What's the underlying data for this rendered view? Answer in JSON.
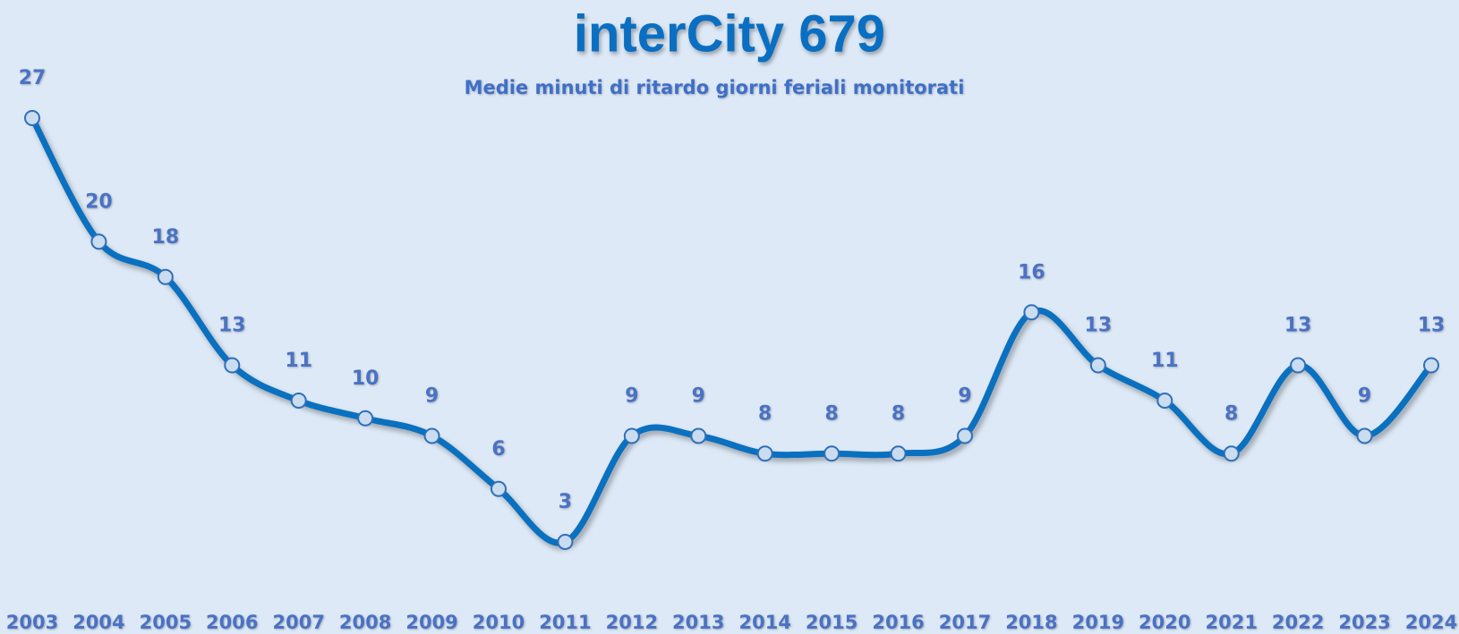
{
  "chart_data": {
    "type": "line",
    "title": "interCity 679",
    "subtitle": "Medie minuti di ritardo giorni feriali monitorati",
    "categories": [
      "2003",
      "2004",
      "2005",
      "2006",
      "2007",
      "2008",
      "2009",
      "2010",
      "2011",
      "2012",
      "2013",
      "2014",
      "2015",
      "2016",
      "2017",
      "2018",
      "2019",
      "2020",
      "2021",
      "2022",
      "2023",
      "2024"
    ],
    "values": [
      27,
      20,
      18,
      13,
      11,
      10,
      9,
      6,
      3,
      9,
      9,
      8,
      8,
      8,
      9,
      16,
      13,
      11,
      8,
      13,
      9,
      13
    ],
    "color": "#0a70c0",
    "smooth": true
  }
}
